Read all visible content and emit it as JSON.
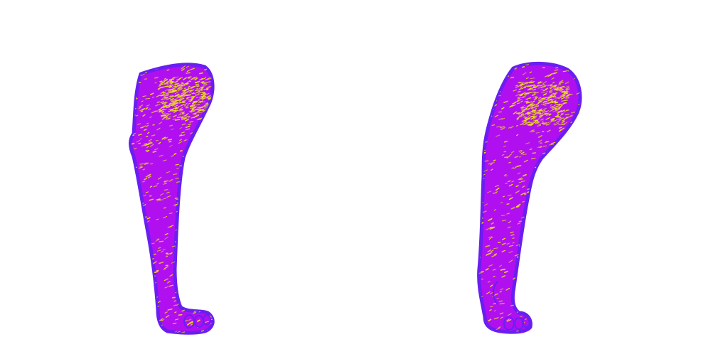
{
  "scene": {
    "background": "#ffffff",
    "fill_color": "#b010f0",
    "outline_color": "#6a1ef2",
    "speckle_color": "#f2e21a",
    "subjects": [
      {
        "name": "left-leg",
        "pose": "front"
      },
      {
        "name": "right-leg",
        "pose": "angled"
      }
    ]
  }
}
